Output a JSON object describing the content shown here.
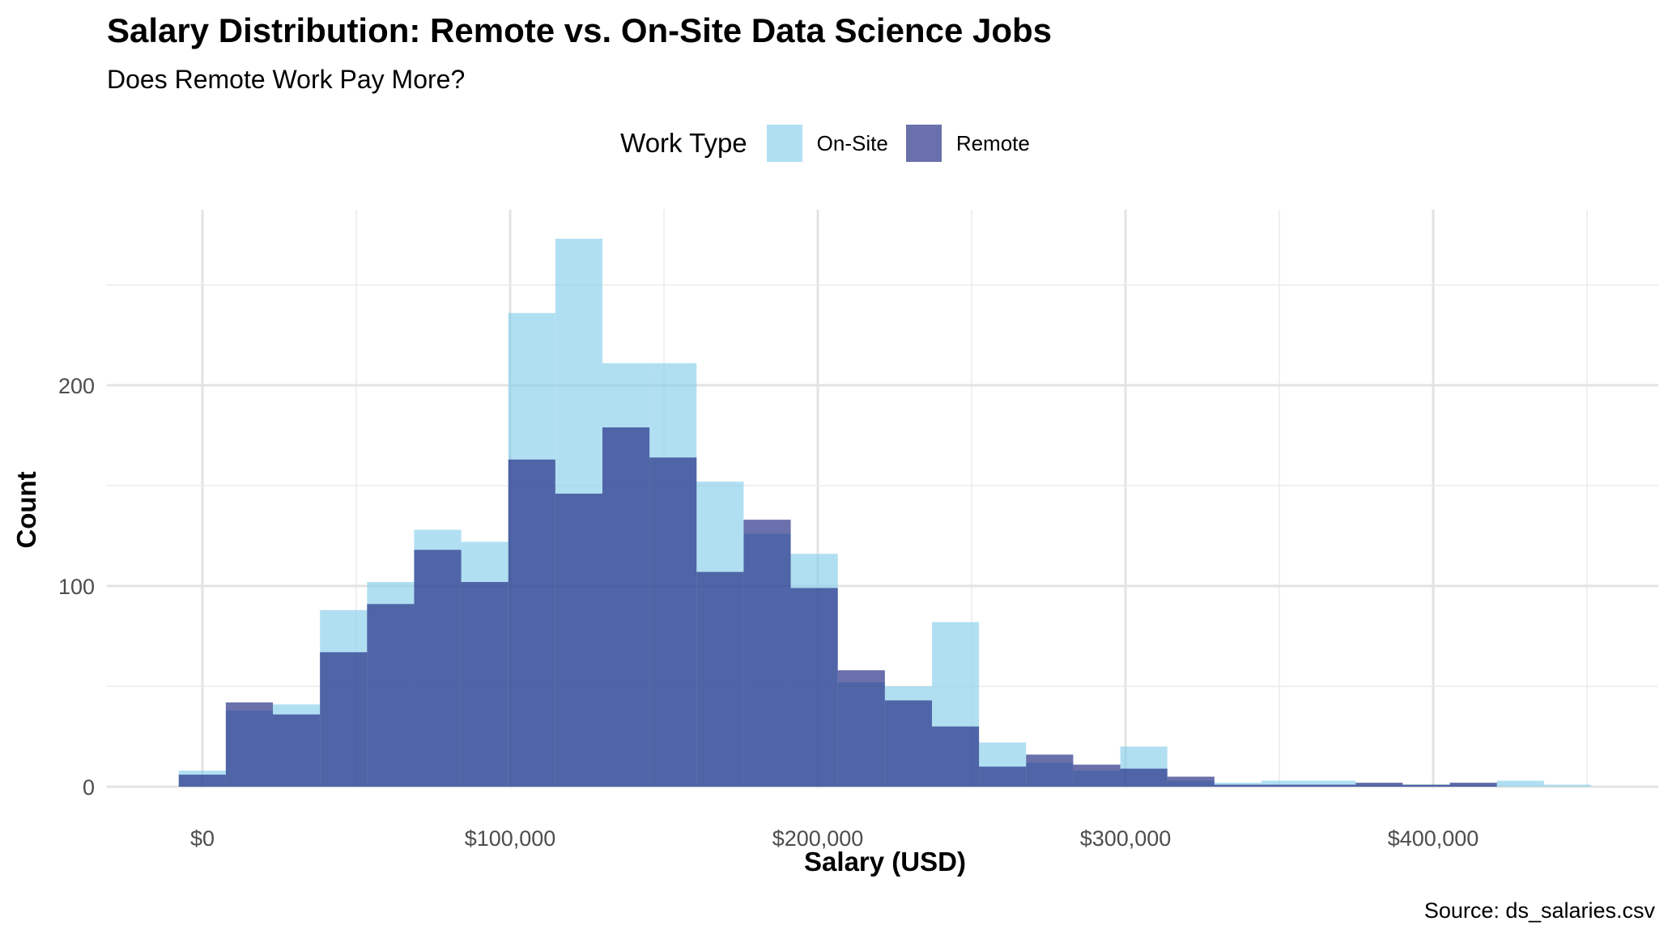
{
  "chart_data": {
    "type": "histogram",
    "title": "Salary Distribution: Remote vs. On-Site Data Science Jobs",
    "subtitle": "Does Remote Work Pay More?",
    "xlabel": "Salary (USD)",
    "ylabel": "Count",
    "caption": "Source: ds_salaries.csv",
    "legend": {
      "title": "Work Type",
      "position": "top",
      "entries": [
        "On-Site",
        "Remote"
      ]
    },
    "xlim": [
      -30000,
      465000
    ],
    "ylim": [
      0,
      275
    ],
    "x_ticks": [
      0,
      100000,
      200000,
      300000,
      400000
    ],
    "x_tick_labels": [
      "$0",
      "$100,000",
      "$200,000",
      "$300,000",
      "$400,000"
    ],
    "y_ticks": [
      0,
      100,
      200
    ],
    "y_tick_labels": [
      "0",
      "100",
      "200"
    ],
    "grid": true,
    "bin_width": 15300,
    "bin_starts": [
      -7700,
      7600,
      22900,
      38200,
      53500,
      68800,
      84100,
      99400,
      114700,
      130000,
      145300,
      160600,
      175900,
      191200,
      206500,
      221800,
      237100,
      252400,
      267700,
      283000,
      298300,
      313600,
      328900,
      344200,
      359500,
      374800,
      390100,
      405400,
      420700,
      436000
    ],
    "series": [
      {
        "name": "On-Site",
        "color": "#87ceeb",
        "opacity": 0.65,
        "values": [
          8,
          38,
          41,
          88,
          102,
          128,
          122,
          236,
          273,
          211,
          211,
          152,
          126,
          116,
          52,
          50,
          82,
          22,
          12,
          8,
          20,
          3,
          2,
          3,
          3,
          1,
          1,
          1,
          3,
          1
        ]
      },
      {
        "name": "Remote",
        "color": "#1a237e",
        "opacity": 0.65,
        "values": [
          6,
          42,
          36,
          67,
          91,
          118,
          102,
          163,
          146,
          179,
          164,
          107,
          133,
          99,
          58,
          43,
          30,
          10,
          16,
          11,
          9,
          5,
          1,
          1,
          1,
          2,
          1,
          2,
          0,
          0
        ]
      }
    ]
  }
}
